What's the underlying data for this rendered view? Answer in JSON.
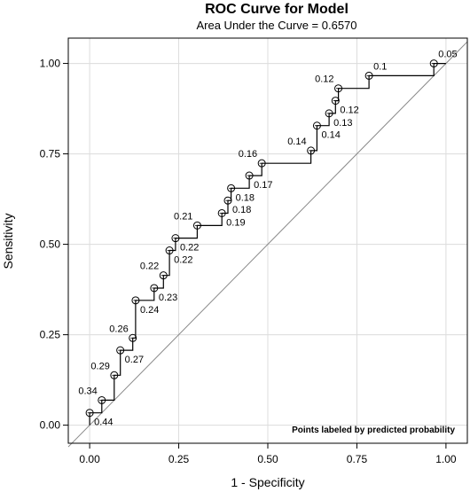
{
  "chart_data": {
    "type": "line",
    "title": "ROC Curve for Model",
    "subtitle": "Area Under the Curve = 0.6570",
    "xlabel": "1 - Specificity",
    "ylabel": "Sensitivity",
    "xlim": [
      -0.06,
      1.06
    ],
    "ylim": [
      -0.05,
      1.07
    ],
    "xticks": [
      "0.00",
      "0.25",
      "0.50",
      "0.75",
      "1.00"
    ],
    "yticks": [
      "0.00",
      "0.25",
      "0.50",
      "0.75",
      "1.00"
    ],
    "grid": true,
    "note": "Points labeled by predicted probability",
    "curve": [
      [
        0,
        0
      ],
      [
        0,
        0.034
      ],
      [
        0.034,
        0.034
      ],
      [
        0.034,
        0.069
      ],
      [
        0.069,
        0.069
      ],
      [
        0.069,
        0.138
      ],
      [
        0.086,
        0.138
      ],
      [
        0.086,
        0.207
      ],
      [
        0.121,
        0.207
      ],
      [
        0.121,
        0.241
      ],
      [
        0.129,
        0.241
      ],
      [
        0.129,
        0.345
      ],
      [
        0.181,
        0.345
      ],
      [
        0.181,
        0.379
      ],
      [
        0.207,
        0.379
      ],
      [
        0.207,
        0.414
      ],
      [
        0.224,
        0.414
      ],
      [
        0.224,
        0.483
      ],
      [
        0.241,
        0.483
      ],
      [
        0.241,
        0.517
      ],
      [
        0.302,
        0.517
      ],
      [
        0.302,
        0.552
      ],
      [
        0.371,
        0.552
      ],
      [
        0.371,
        0.586
      ],
      [
        0.388,
        0.586
      ],
      [
        0.388,
        0.621
      ],
      [
        0.397,
        0.621
      ],
      [
        0.397,
        0.655
      ],
      [
        0.448,
        0.655
      ],
      [
        0.448,
        0.69
      ],
      [
        0.483,
        0.69
      ],
      [
        0.483,
        0.724
      ],
      [
        0.621,
        0.724
      ],
      [
        0.621,
        0.759
      ],
      [
        0.638,
        0.759
      ],
      [
        0.638,
        0.828
      ],
      [
        0.672,
        0.828
      ],
      [
        0.672,
        0.862
      ],
      [
        0.69,
        0.862
      ],
      [
        0.69,
        0.897
      ],
      [
        0.698,
        0.897
      ],
      [
        0.698,
        0.931
      ],
      [
        0.784,
        0.931
      ],
      [
        0.784,
        0.966
      ],
      [
        0.966,
        0.966
      ],
      [
        0.966,
        1.0
      ],
      [
        1.0,
        1.0
      ]
    ],
    "points": [
      {
        "x": 0.0,
        "y": 0.034,
        "label": "0.44",
        "pos": "br"
      },
      {
        "x": 0.034,
        "y": 0.069,
        "label": "0.34",
        "pos": "tl"
      },
      {
        "x": 0.069,
        "y": 0.138,
        "label": "0.29",
        "pos": "tl"
      },
      {
        "x": 0.086,
        "y": 0.207,
        "label": "0.27",
        "pos": "br"
      },
      {
        "x": 0.121,
        "y": 0.241,
        "label": "0.26",
        "pos": "tl"
      },
      {
        "x": 0.129,
        "y": 0.345,
        "label": "0.24",
        "pos": "br"
      },
      {
        "x": 0.181,
        "y": 0.379,
        "label": "0.23",
        "pos": "br"
      },
      {
        "x": 0.207,
        "y": 0.414,
        "label": "0.22",
        "pos": "tl"
      },
      {
        "x": 0.224,
        "y": 0.483,
        "label": "0.22",
        "pos": "br"
      },
      {
        "x": 0.241,
        "y": 0.517,
        "label": "0.22",
        "pos": "br"
      },
      {
        "x": 0.302,
        "y": 0.552,
        "label": "0.21",
        "pos": "tl"
      },
      {
        "x": 0.371,
        "y": 0.586,
        "label": "0.19",
        "pos": "br"
      },
      {
        "x": 0.388,
        "y": 0.621,
        "label": "0.18",
        "pos": "br"
      },
      {
        "x": 0.397,
        "y": 0.655,
        "label": "0.18",
        "pos": "br"
      },
      {
        "x": 0.448,
        "y": 0.69,
        "label": "0.17",
        "pos": "br"
      },
      {
        "x": 0.483,
        "y": 0.724,
        "label": "0.16",
        "pos": "tl"
      },
      {
        "x": 0.621,
        "y": 0.759,
        "label": "0.14",
        "pos": "tl"
      },
      {
        "x": 0.638,
        "y": 0.828,
        "label": "0.14",
        "pos": "br"
      },
      {
        "x": 0.672,
        "y": 0.862,
        "label": "0.13",
        "pos": "br"
      },
      {
        "x": 0.69,
        "y": 0.897,
        "label": "0.12",
        "pos": "br"
      },
      {
        "x": 0.698,
        "y": 0.931,
        "label": "0.12",
        "pos": "tl"
      },
      {
        "x": 0.784,
        "y": 0.966,
        "label": "0.1",
        "pos": "tr"
      },
      {
        "x": 0.966,
        "y": 1.0,
        "label": "0.05",
        "pos": "tr"
      }
    ],
    "colors": {
      "curve": "#000000",
      "diagonal": "#888888",
      "grid": "#dcdcdc",
      "frame": "#000000"
    }
  }
}
